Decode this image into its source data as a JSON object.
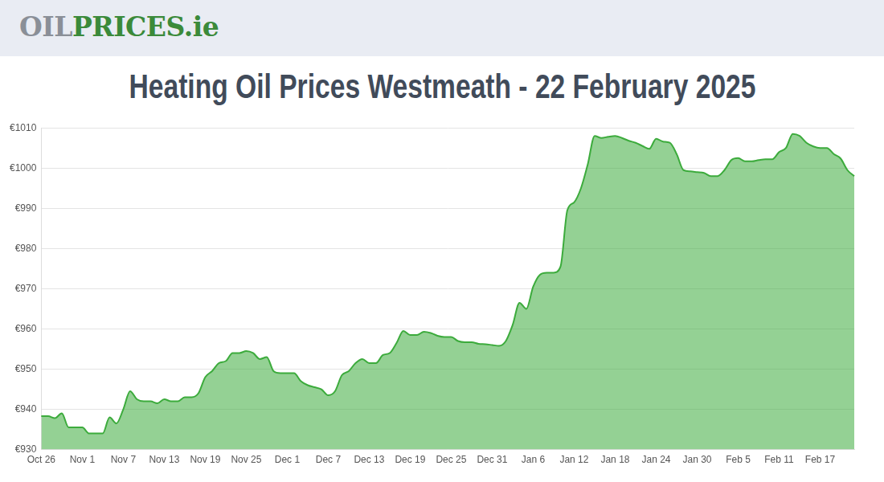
{
  "header": {
    "logo": [
      "OIL",
      "PRICES.ie"
    ]
  },
  "chart_data": {
    "type": "area",
    "title": "Heating Oil Prices Westmeath - 22 February 2025",
    "color": "#3cab3c",
    "grid": true,
    "categories": [
      "Oct 26",
      null,
      null,
      null,
      null,
      null,
      "Nov 1",
      null,
      null,
      null,
      null,
      null,
      "Nov 7",
      null,
      null,
      null,
      null,
      null,
      "Nov 13",
      null,
      null,
      null,
      null,
      null,
      "Nov 19",
      null,
      null,
      null,
      null,
      null,
      "Nov 25",
      null,
      null,
      null,
      null,
      null,
      "Dec 1",
      null,
      null,
      null,
      null,
      null,
      "Dec 7",
      null,
      null,
      null,
      null,
      null,
      "Dec 13",
      null,
      null,
      null,
      null,
      null,
      "Dec 19",
      null,
      null,
      null,
      null,
      null,
      "Dec 25",
      null,
      null,
      null,
      null,
      null,
      "Dec 31",
      null,
      null,
      null,
      null,
      null,
      "Jan 6",
      null,
      null,
      null,
      null,
      null,
      "Jan 12",
      null,
      null,
      null,
      null,
      null,
      "Jan 18",
      null,
      null,
      null,
      null,
      null,
      "Jan 24",
      null,
      null,
      null,
      null,
      null,
      "Jan 30",
      null,
      null,
      null,
      null,
      null,
      "Feb 5",
      null,
      null,
      null,
      null,
      null,
      "Feb 11",
      null,
      null,
      null,
      null,
      null,
      "Feb 17",
      null,
      null,
      null,
      null,
      null
    ],
    "values": [
      938.3,
      938.3,
      937.8,
      939,
      935.5,
      935.5,
      935.5,
      934,
      934,
      934,
      938,
      936.5,
      940,
      944.5,
      942.5,
      942,
      942,
      941.5,
      942.5,
      942,
      942,
      943,
      943,
      944,
      948,
      949.5,
      951.5,
      952,
      954,
      954,
      954.5,
      954,
      952.5,
      953,
      949.5,
      949,
      949,
      949,
      947,
      946,
      945.5,
      945,
      943.5,
      944.5,
      948.5,
      949.5,
      951.5,
      952.5,
      951.5,
      951.5,
      953.5,
      954,
      956.5,
      959.5,
      958.5,
      958.5,
      959.3,
      959,
      958.3,
      958,
      958,
      957,
      956.7,
      956.7,
      956.3,
      956.2,
      956,
      955.8,
      957,
      961,
      966.5,
      965,
      970.5,
      973.5,
      974,
      974,
      975.5,
      989.5,
      991.5,
      995,
      1001,
      1008,
      1007.5,
      1007.8,
      1008,
      1007.5,
      1006.8,
      1006.3,
      1005.5,
      1004.8,
      1007.3,
      1006.6,
      1006.3,
      1003.5,
      999.5,
      999.2,
      999,
      998.8,
      998,
      998,
      999.5,
      1002,
      1002.5,
      1001.7,
      1001.7,
      1002,
      1002.2,
      1002.2,
      1004,
      1005,
      1008.5,
      1008,
      1006.3,
      1005.4,
      1005,
      1005,
      1003.5,
      1002.4,
      999.5,
      998
    ],
    "ylim": [
      930,
      1010
    ],
    "yticks": [
      {
        "value": 930,
        "label": "€930"
      },
      {
        "value": 940,
        "label": "€940"
      },
      {
        "value": 950,
        "label": "€950"
      },
      {
        "value": 960,
        "label": "€960"
      },
      {
        "value": 970,
        "label": "€970"
      },
      {
        "value": 980,
        "label": "€980"
      },
      {
        "value": 990,
        "label": "€990"
      },
      {
        "value": 1000,
        "label": "€1000"
      },
      {
        "value": 1010,
        "label": "€1010"
      }
    ]
  }
}
